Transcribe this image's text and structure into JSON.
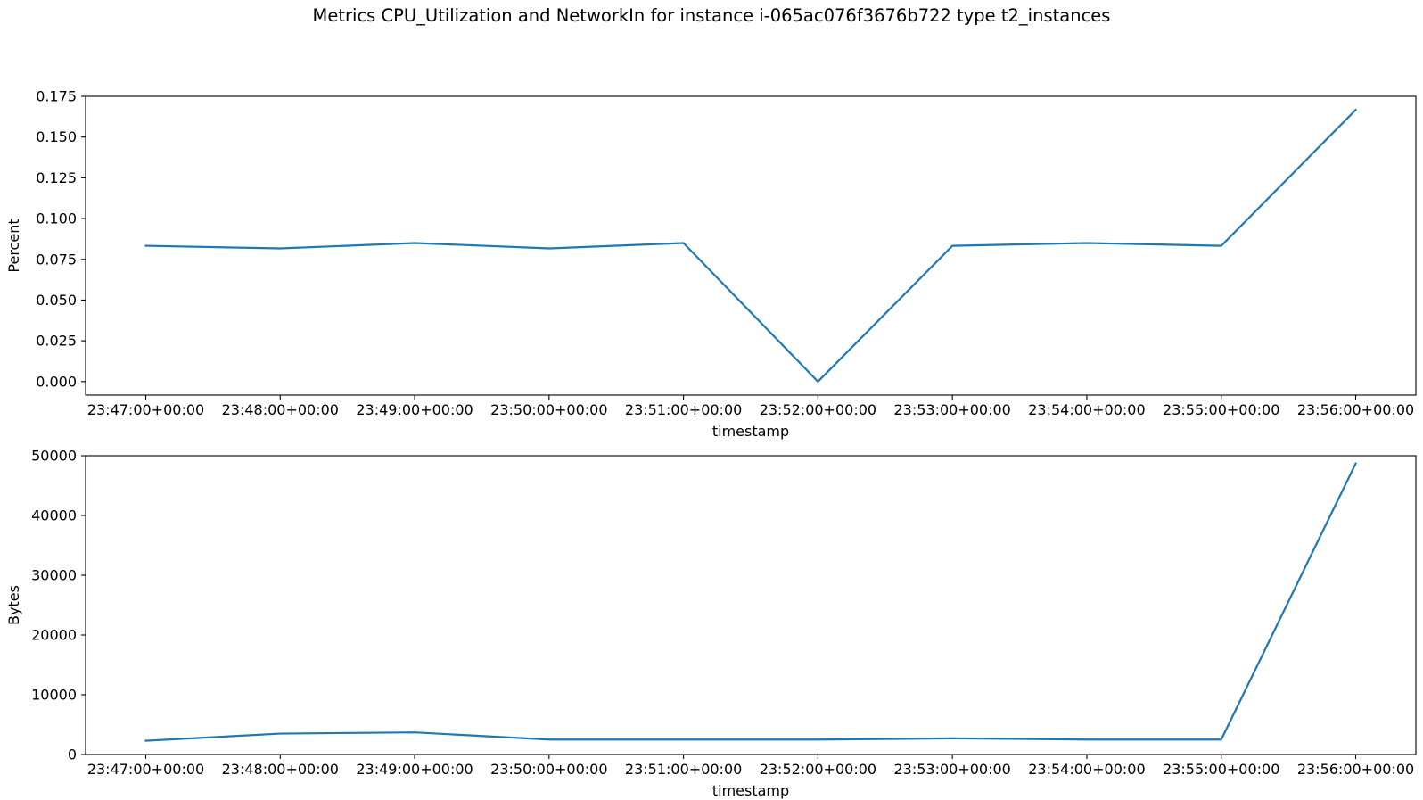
{
  "figure": {
    "title": "Metrics CPU_Utilization and NetworkIn for instance i-065ac076f3676b722 type t2_instances"
  },
  "chart_data": [
    {
      "type": "line",
      "xlabel": "timestamp",
      "ylabel": "Percent",
      "categories": [
        "23:47:00+00:00",
        "23:48:00+00:00",
        "23:49:00+00:00",
        "23:50:00+00:00",
        "23:51:00+00:00",
        "23:52:00+00:00",
        "23:53:00+00:00",
        "23:54:00+00:00",
        "23:55:00+00:00",
        "23:56:00+00:00"
      ],
      "series": [
        {
          "values": [
            0.0833,
            0.0817,
            0.085,
            0.0817,
            0.085,
            0.0,
            0.0833,
            0.085,
            0.0833,
            0.1667
          ]
        }
      ],
      "ylim": [
        -0.0083,
        0.175
      ],
      "yticks": [
        0.0,
        0.025,
        0.05,
        0.075,
        0.1,
        0.125,
        0.15,
        0.175
      ],
      "ytick_labels": [
        "0.000",
        "0.025",
        "0.050",
        "0.075",
        "0.100",
        "0.125",
        "0.150",
        "0.175"
      ],
      "line_color": "#1f77b4",
      "grid": false,
      "legend": false
    },
    {
      "type": "line",
      "xlabel": "timestamp",
      "ylabel": "Bytes",
      "categories": [
        "23:47:00+00:00",
        "23:48:00+00:00",
        "23:49:00+00:00",
        "23:50:00+00:00",
        "23:51:00+00:00",
        "23:52:00+00:00",
        "23:53:00+00:00",
        "23:54:00+00:00",
        "23:55:00+00:00",
        "23:56:00+00:00"
      ],
      "series": [
        {
          "values": [
            2300,
            3500,
            3700,
            2500,
            2500,
            2500,
            2700,
            2500,
            2500,
            48700
          ]
        }
      ],
      "ylim": [
        0,
        50000
      ],
      "yticks": [
        0,
        10000,
        20000,
        30000,
        40000,
        50000
      ],
      "ytick_labels": [
        "0",
        "10000",
        "20000",
        "30000",
        "40000",
        "50000"
      ],
      "line_color": "#1f77b4",
      "grid": false,
      "legend": false
    }
  ]
}
